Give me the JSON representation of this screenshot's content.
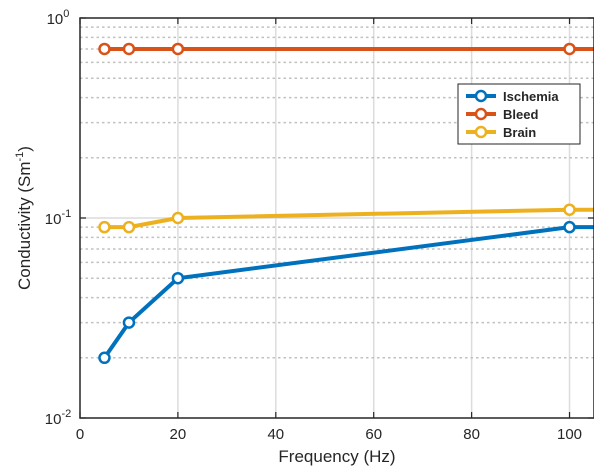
{
  "chart_data": {
    "type": "line",
    "xlabel": "Frequency (Hz)",
    "ylabel_main": "Conductivity (Sm",
    "ylabel_sup": "-1",
    "ylabel_close": ")",
    "xlim": [
      0,
      105
    ],
    "ylim": [
      0.01,
      1
    ],
    "yscale": "log",
    "grid": true,
    "legend_position": "top-right",
    "x": [
      5,
      10,
      20,
      100,
      105
    ],
    "xticks": [
      0,
      20,
      40,
      60,
      80,
      100
    ],
    "yticks": [
      {
        "value": 0.01,
        "base": "10",
        "exp": "-2"
      },
      {
        "value": 0.1,
        "base": "10",
        "exp": "-1"
      },
      {
        "value": 1,
        "base": "10",
        "exp": "0"
      }
    ],
    "series": [
      {
        "name": "Ischemia",
        "color": "#0072BD",
        "values": [
          0.02,
          0.03,
          0.05,
          0.09,
          0.09
        ],
        "markers": [
          true,
          true,
          true,
          true,
          false
        ]
      },
      {
        "name": "Bleed",
        "color": "#D95319",
        "values": [
          0.7,
          0.7,
          0.7,
          0.7,
          0.7
        ],
        "markers": [
          true,
          true,
          true,
          true,
          false
        ]
      },
      {
        "name": "Brain",
        "color": "#EDB120",
        "values": [
          0.09,
          0.09,
          0.1,
          0.11,
          0.11
        ],
        "markers": [
          true,
          true,
          true,
          true,
          false
        ]
      }
    ]
  }
}
